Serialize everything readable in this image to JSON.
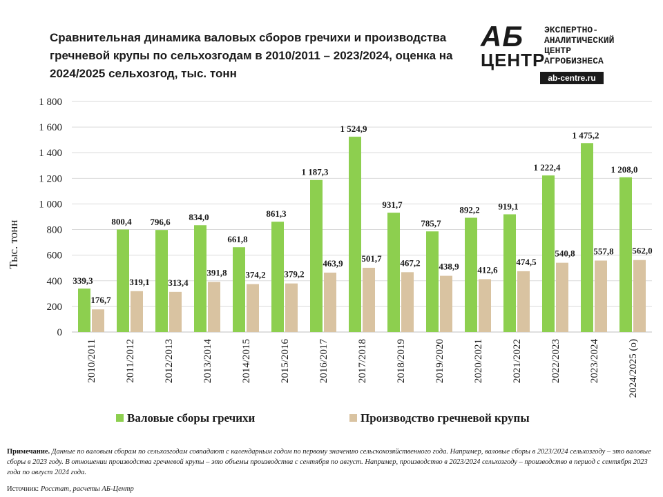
{
  "title": "Сравнительная динамика валовых сборов гречихи и производства гречневой крупы по сельхозгодам в 2010/2011 – 2023/2024, оценка на 2024/2025 сельхозгод, тыс. тонн",
  "logo": {
    "ab": "АБ",
    "center": "ЦЕНТР",
    "lines": [
      "ЭКСПЕРТНО-",
      "АНАЛИТИЧЕСКИЙ",
      "ЦЕНТР",
      "АГРОБИЗНЕСА"
    ],
    "url": "ab-centre.ru"
  },
  "note": {
    "label": "Примечание.",
    "text": "Данные по валовым сборам по сельхозгодам совпадают с календарным годом по первому значению сельскохозяйственного года. Например, валовые сборы в 2023/2024 сельхозгоду – это валовые сборы в 2023 году. В отношении производства гречневой крупы – это объемы производства с сентября по август. Например, производство в 2023/2024 сельхозгоду – производство в период с сентября 2023 года по август 2024 года."
  },
  "source": {
    "label": "Источник:",
    "text": "Росстат, расчеты АБ-Центр"
  },
  "chart_data": {
    "type": "bar",
    "title": "Сравнительная динамика валовых сборов гречихи и производства гречневой крупы по сельхозгодам в 2010/2011 – 2023/2024, оценка на 2024/2025 сельхозгод, тыс. тонн",
    "ylabel": "Тыс. тонн",
    "xlabel": "",
    "ylim": [
      0,
      1800
    ],
    "yticks": [
      0,
      200,
      400,
      600,
      800,
      1000,
      1200,
      1400,
      1600,
      1800
    ],
    "ytick_labels": [
      "0",
      "200",
      "400",
      "600",
      "800",
      "1 000",
      "1 200",
      "1 400",
      "1 600",
      "1 800"
    ],
    "grid": true,
    "legend": "bottom",
    "categories": [
      "2010/2011",
      "2011/2012",
      "2012/2013",
      "2013/2014",
      "2014/2015",
      "2015/2016",
      "2016/2017",
      "2017/2018",
      "2018/2019",
      "2019/2020",
      "2020/2021",
      "2021/2022",
      "2022/2023",
      "2023/2024",
      "2024/2025 (о)"
    ],
    "series": [
      {
        "name": "Валовые сборы гречихи",
        "color": "#8dcf4f",
        "values": [
          339.3,
          800.4,
          796.6,
          834.0,
          661.8,
          861.3,
          1187.3,
          1524.9,
          931.7,
          785.7,
          892.2,
          919.1,
          1222.4,
          1475.2,
          1208.0
        ],
        "labels": [
          "339,3",
          "800,4",
          "796,6",
          "834,0",
          "661,8",
          "861,3",
          "1 187,3",
          "1 524,9",
          "931,7",
          "785,7",
          "892,2",
          "919,1",
          "1 222,4",
          "1 475,2",
          "1 208,0"
        ]
      },
      {
        "name": "Производство гречневой крупы",
        "color": "#d9c3a1",
        "values": [
          176.7,
          319.1,
          313.4,
          391.8,
          374.2,
          379.2,
          463.9,
          501.7,
          467.2,
          438.9,
          412.6,
          474.5,
          540.8,
          557.8,
          562.0
        ],
        "labels": [
          "176,7",
          "319,1",
          "313,4",
          "391,8",
          "374,2",
          "379,2",
          "463,9",
          "501,7",
          "467,2",
          "438,9",
          "412,6",
          "474,5",
          "540,8",
          "557,8",
          "562,0"
        ]
      }
    ]
  }
}
